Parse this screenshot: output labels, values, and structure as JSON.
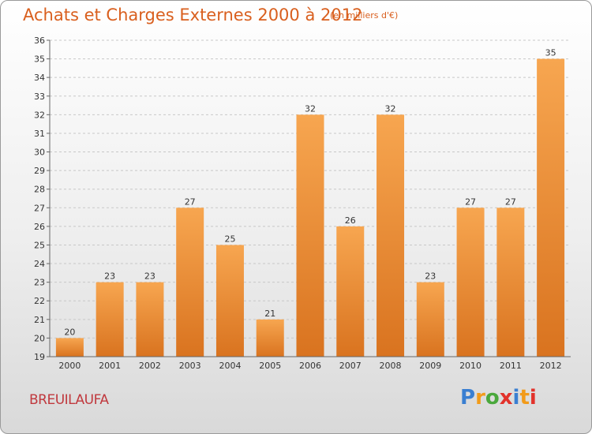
{
  "header": {
    "title": "Achats et Charges Externes 2000 à 2012",
    "unit": "(en milliers d'€)"
  },
  "footer": {
    "commune": "BREUILAUFA",
    "logo_text": "Proxiti",
    "logo_colors": [
      "#3a7fd1",
      "#f29b1a",
      "#4aa83c",
      "#e2322b",
      "#3a7fd1",
      "#f29b1a",
      "#e2322b"
    ]
  },
  "chart_data": {
    "type": "bar",
    "title": "Achats et Charges Externes 2000 à 2012",
    "subtitle": "(en milliers d'€)",
    "xlabel": "",
    "ylabel": "",
    "categories": [
      "2000",
      "2001",
      "2002",
      "2003",
      "2004",
      "2005",
      "2006",
      "2007",
      "2008",
      "2009",
      "2010",
      "2011",
      "2012"
    ],
    "values": [
      20,
      23,
      23,
      27,
      25,
      21,
      32,
      26,
      32,
      23,
      27,
      27,
      35
    ],
    "ylim": [
      19,
      36
    ],
    "yticks": [
      19,
      20,
      21,
      22,
      23,
      24,
      25,
      26,
      27,
      28,
      29,
      30,
      31,
      32,
      33,
      34,
      35,
      36
    ],
    "grid": true,
    "data_labels": true,
    "bar_color_top": "#f7a650",
    "bar_color_bottom": "#d9731f"
  }
}
